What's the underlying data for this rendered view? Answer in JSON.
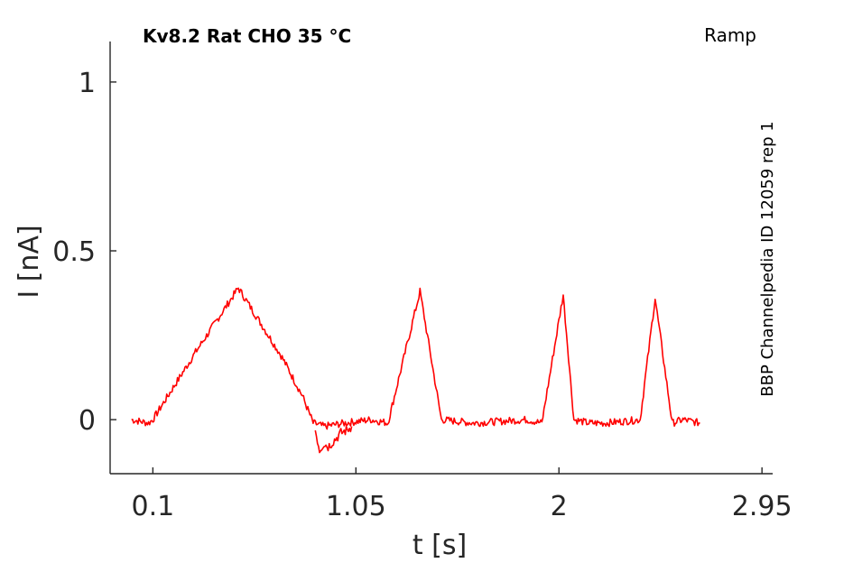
{
  "chart_data": {
    "type": "line",
    "title": "Kv8.2  Rat  CHO  35 °C",
    "protocol": "Ramp",
    "source": "BBP Channelpedia ID 12059 rep 1",
    "xlabel": "t [s]",
    "ylabel": "I [nA]",
    "xlim": [
      -0.1,
      3.0
    ],
    "ylim": [
      -0.16,
      1.12
    ],
    "xticks": [
      0.1,
      1.05,
      2,
      2.95
    ],
    "xtick_labels": [
      "0.1",
      "1.05",
      "2",
      "2.95"
    ],
    "yticks": [
      0,
      0.5,
      1
    ],
    "ytick_labels": [
      "0",
      "0.5",
      "1"
    ],
    "grid": false,
    "color": "#ff0000",
    "series": [
      {
        "x": [
          0.0,
          0.08,
          0.1,
          0.15,
          0.3,
          0.5,
          0.7,
          0.8,
          0.85,
          0.9,
          1.0,
          1.12,
          1.2,
          1.35,
          1.45,
          1.6,
          1.85,
          1.92,
          2.02,
          2.07,
          2.14,
          2.22,
          2.38,
          2.45,
          2.53,
          2.58,
          2.66
        ],
        "y": [
          0.0,
          -0.01,
          0.0,
          0.05,
          0.2,
          0.39,
          0.19,
          0.07,
          -0.01,
          -0.02,
          -0.01,
          0.0,
          -0.01,
          0.38,
          0.0,
          -0.01,
          0.0,
          -0.01,
          0.37,
          0.0,
          -0.01,
          -0.01,
          0.0,
          0.36,
          -0.01,
          0.0,
          -0.01
        ]
      },
      {
        "x": [
          0.86,
          0.88,
          0.9,
          0.92,
          0.95,
          0.98,
          1.01,
          1.03
        ],
        "y": [
          -0.03,
          -0.09,
          -0.07,
          -0.08,
          -0.06,
          -0.04,
          -0.03,
          -0.02
        ]
      }
    ]
  }
}
